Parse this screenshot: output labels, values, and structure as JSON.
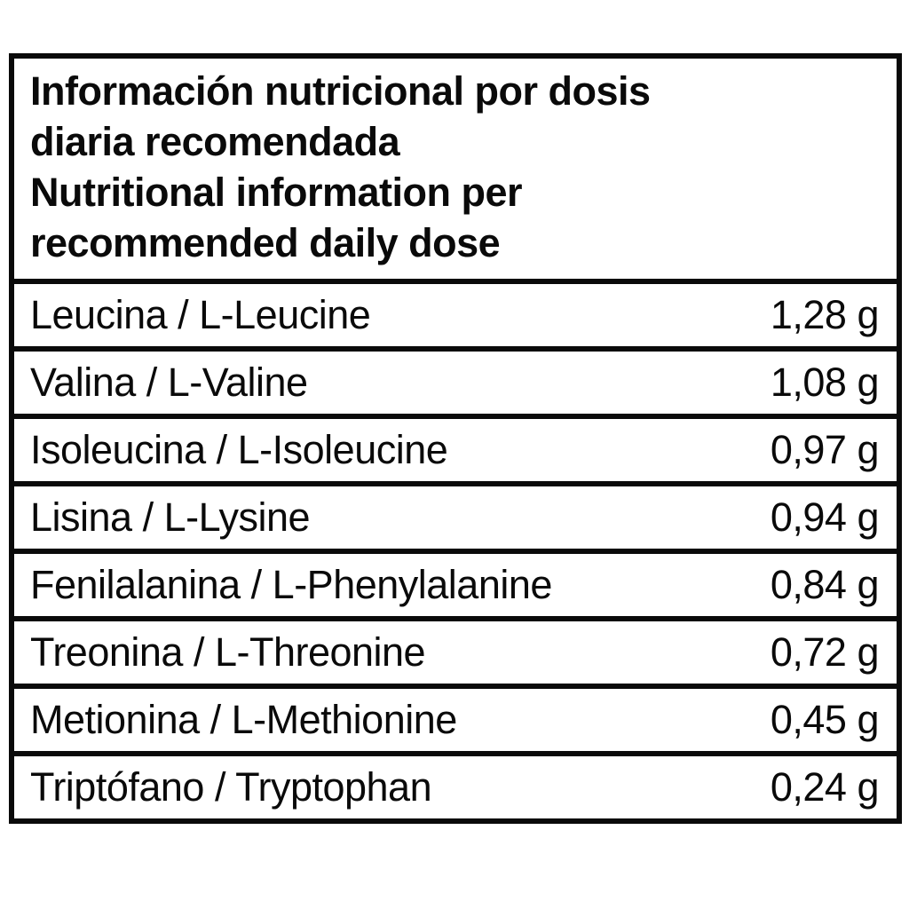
{
  "colors": {
    "background": "#ffffff",
    "text": "#0a0a0a",
    "border": "#0a0a0a"
  },
  "table": {
    "title_lines": [
      "Información nutricional por dosis",
      "diaria recomendada",
      "Nutritional information per",
      "recommended daily dose"
    ],
    "unit": "g",
    "rows": [
      {
        "label": "Leucina / L-Leucine",
        "value": "1,28 g"
      },
      {
        "label": "Valina / L-Valine",
        "value": "1,08 g"
      },
      {
        "label": "Isoleucina / L-Isoleucine",
        "value": "0,97 g"
      },
      {
        "label": "Lisina / L-Lysine",
        "value": "0,94 g"
      },
      {
        "label": "Fenilalanina / L-Phenylalanine",
        "value": "0,84 g"
      },
      {
        "label": "Treonina / L-Threonine",
        "value": "0,72 g"
      },
      {
        "label": "Metionina / L-Methionine",
        "value": "0,45 g"
      },
      {
        "label": "Triptófano / Tryptophan",
        "value": "0,24 g"
      }
    ]
  }
}
